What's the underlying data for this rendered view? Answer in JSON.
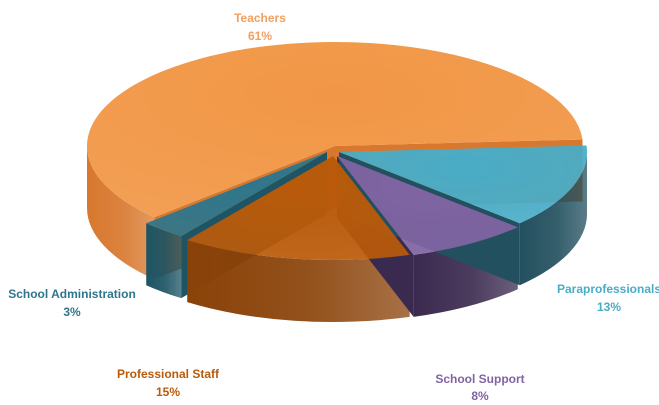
{
  "chart_data": {
    "type": "pie",
    "title": "",
    "units": "%",
    "slices": [
      {
        "label": "Teachers",
        "value": 61,
        "value_label": "61%",
        "color": "#F19645",
        "side_color": "#D8782E"
      },
      {
        "label": "Paraprofessionals",
        "value": 13,
        "value_label": "13%",
        "color": "#4AACC6",
        "side_color": "#23505F"
      },
      {
        "label": "School Support",
        "value": 8,
        "value_label": "8%",
        "color": "#8064A2",
        "side_color": "#3B2A4F"
      },
      {
        "label": "Professional Staff",
        "value": 15,
        "value_label": "15%",
        "color": "#B95A0A",
        "side_color": "#8A4208"
      },
      {
        "label": "School Administration",
        "value": 3,
        "value_label": "3%",
        "color": "#2E768C",
        "side_color": "#1E5464"
      }
    ],
    "label_colors": [
      "#F0A060",
      "#4AACC6",
      "#8064A2",
      "#B95A0A",
      "#2E768C"
    ],
    "legend": "none",
    "style": "3d-exploded-pie"
  }
}
